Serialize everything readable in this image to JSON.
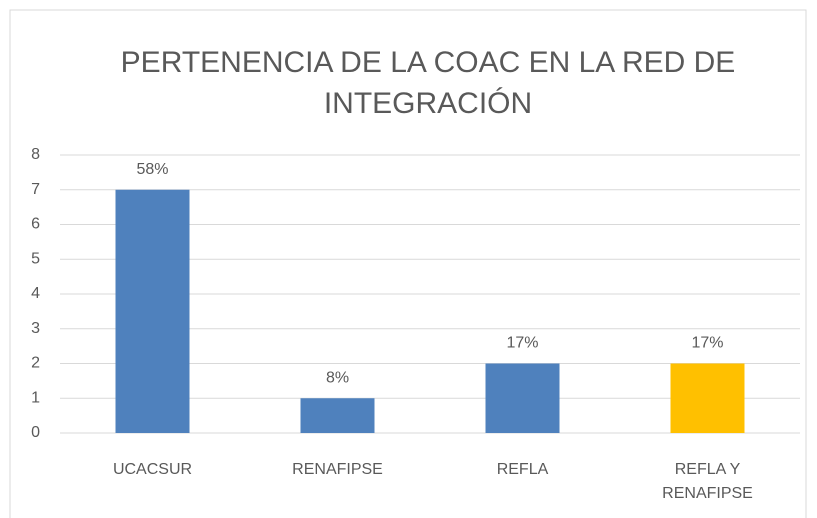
{
  "chart_data": {
    "type": "bar",
    "title": "PERTENENCIA DE LA COAC EN LA RED DE INTEGRACIÓN",
    "categories": [
      "UCACSUR",
      "RENAFIPSE",
      "REFLA",
      "REFLA Y RENAFIPSE"
    ],
    "values": [
      7,
      1,
      2,
      2
    ],
    "value_labels": [
      "58%",
      "8%",
      "17%",
      "17%"
    ],
    "colors": [
      "#4f81bd",
      "#4f81bd",
      "#4f81bd",
      "#ffc000"
    ],
    "ylim": [
      0,
      8
    ],
    "yticks": [
      0,
      1,
      2,
      3,
      4,
      5,
      6,
      7,
      8
    ],
    "grid": true
  }
}
